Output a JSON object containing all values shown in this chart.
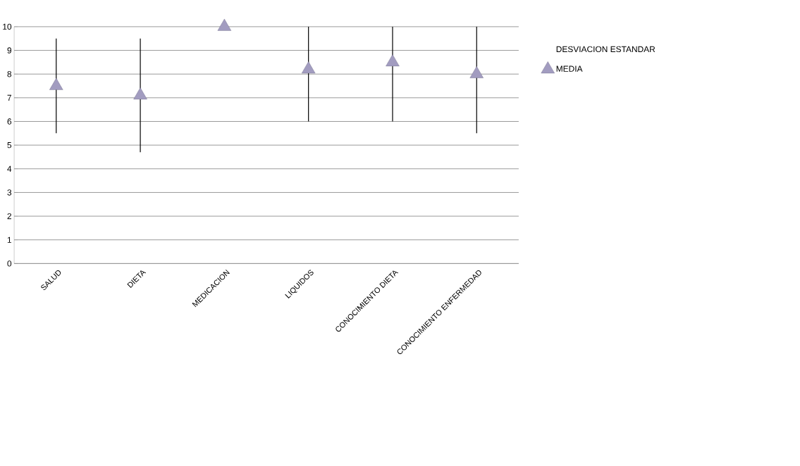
{
  "chart_data": {
    "type": "scatter",
    "categories": [
      "SALUD",
      "DIETA",
      "MEDICACION",
      "LIQUIDOS",
      "CONOCIMIENTO DIETA",
      "CONOCIMIENTO ENFERMEDAD"
    ],
    "series": [
      {
        "name": "MEDIA",
        "color": "#a29cc0",
        "values": [
          7.5,
          7.1,
          10,
          8.2,
          8.5,
          8.0
        ],
        "errors": [
          [
            5.5,
            9.5
          ],
          [
            4.7,
            9.5
          ],
          null,
          [
            6.0,
            10
          ],
          [
            6.0,
            10
          ],
          [
            5.5,
            10
          ]
        ]
      }
    ],
    "legend_title": "DESVIACION ESTANDAR",
    "ylim": [
      0,
      10
    ],
    "yticks": [
      0,
      1,
      2,
      3,
      4,
      5,
      6,
      7,
      8,
      9,
      10
    ],
    "grid": "y",
    "legend": "right",
    "marker": "triangle"
  }
}
